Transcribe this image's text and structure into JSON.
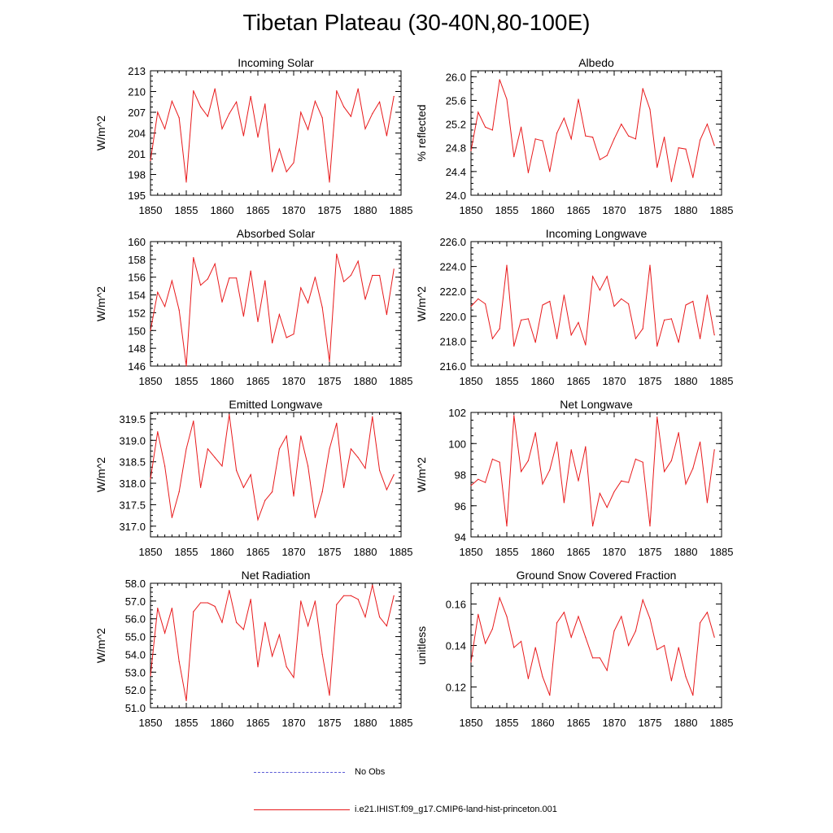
{
  "title": "Tibetan Plateau (30-40N,80-100E)",
  "legend": {
    "obs_label": "No Obs",
    "obs_color": "#5b5bd6",
    "model_label": "i.e21.IHIST.f09_g17.CMIP6-land-hist-princeton.001",
    "model_color": "#e8191b"
  },
  "chart_data": [
    {
      "type": "line",
      "title": "Incoming Solar",
      "ylabel": "W/m^2",
      "xlim": [
        1850,
        1885
      ],
      "ylim": [
        195,
        213
      ],
      "xticks": [
        1850,
        1855,
        1860,
        1865,
        1870,
        1875,
        1880,
        1885
      ],
      "yticks": [
        195,
        198,
        201,
        204,
        207,
        210,
        213
      ],
      "ytick_labels": [
        "195",
        "198",
        "201",
        "204",
        "207",
        "210",
        "213"
      ],
      "series": [
        {
          "x": [
            1850,
            1851,
            1852,
            1853,
            1854,
            1855,
            1856,
            1857,
            1858,
            1859,
            1860,
            1861,
            1862,
            1863,
            1864,
            1865,
            1866,
            1867,
            1868,
            1869,
            1870,
            1871,
            1872,
            1873,
            1874,
            1875,
            1876,
            1877,
            1878,
            1879,
            1880,
            1881,
            1882,
            1883,
            1884
          ],
          "values": [
            200.0,
            207.0,
            204.6,
            208.6,
            206.2,
            196.9,
            210.1,
            207.8,
            206.4,
            210.4,
            204.6,
            206.8,
            208.5,
            203.6,
            209.3,
            203.4,
            208.2,
            198.4,
            201.7,
            198.4,
            199.7,
            207.0,
            204.5,
            208.6,
            206.2,
            196.9,
            210.1,
            207.8,
            206.4,
            210.4,
            204.6,
            206.8,
            208.5,
            203.6,
            209.3
          ]
        }
      ]
    },
    {
      "type": "line",
      "title": "Albedo",
      "ylabel": "% reflected",
      "xlim": [
        1850,
        1885
      ],
      "ylim": [
        24.0,
        26.1
      ],
      "xticks": [
        1850,
        1855,
        1860,
        1865,
        1870,
        1875,
        1880,
        1885
      ],
      "yticks": [
        24.0,
        24.4,
        24.8,
        25.2,
        25.6,
        26.0
      ],
      "ytick_labels": [
        "24.0",
        "24.4",
        "24.8",
        "25.2",
        "25.6",
        "26.0"
      ],
      "series": [
        {
          "x": [
            1850,
            1851,
            1852,
            1853,
            1854,
            1855,
            1856,
            1857,
            1858,
            1859,
            1860,
            1861,
            1862,
            1863,
            1864,
            1865,
            1866,
            1867,
            1868,
            1869,
            1870,
            1871,
            1872,
            1873,
            1874,
            1875,
            1876,
            1877,
            1878,
            1879,
            1880,
            1881,
            1882,
            1883,
            1884
          ],
          "values": [
            24.75,
            25.4,
            25.15,
            25.1,
            25.95,
            25.62,
            24.65,
            25.15,
            24.38,
            24.95,
            24.92,
            24.4,
            25.05,
            25.3,
            24.95,
            25.62,
            25.0,
            24.98,
            24.6,
            24.67,
            24.95,
            25.2,
            25.0,
            24.95,
            25.8,
            25.45,
            24.47,
            24.98,
            24.23,
            24.8,
            24.78,
            24.3,
            24.93,
            25.2,
            24.84
          ]
        }
      ]
    },
    {
      "type": "line",
      "title": "Absorbed Solar",
      "ylabel": "W/m^2",
      "xlim": [
        1850,
        1885
      ],
      "ylim": [
        146,
        160
      ],
      "xticks": [
        1850,
        1855,
        1860,
        1865,
        1870,
        1875,
        1880,
        1885
      ],
      "yticks": [
        146,
        148,
        150,
        152,
        154,
        156,
        158,
        160
      ],
      "ytick_labels": [
        "146",
        "148",
        "150",
        "152",
        "154",
        "156",
        "158",
        "160"
      ],
      "series": [
        {
          "x": [
            1850,
            1851,
            1852,
            1853,
            1854,
            1855,
            1856,
            1857,
            1858,
            1859,
            1860,
            1861,
            1862,
            1863,
            1864,
            1865,
            1866,
            1867,
            1868,
            1869,
            1870,
            1871,
            1872,
            1873,
            1874,
            1875,
            1876,
            1877,
            1878,
            1879,
            1880,
            1881,
            1882,
            1883,
            1884
          ],
          "values": [
            150.0,
            154.3,
            152.7,
            155.6,
            152.3,
            146.0,
            158.2,
            155.1,
            155.8,
            157.5,
            153.2,
            155.9,
            155.9,
            151.6,
            156.7,
            151.0,
            155.6,
            148.6,
            151.8,
            149.2,
            149.6,
            154.8,
            153.1,
            156.0,
            152.6,
            146.5,
            158.6,
            155.5,
            156.2,
            157.8,
            153.5,
            156.2,
            156.2,
            151.8,
            156.9
          ]
        }
      ]
    },
    {
      "type": "line",
      "title": "Incoming Longwave",
      "ylabel": "W/m^2",
      "xlim": [
        1850,
        1885
      ],
      "ylim": [
        216,
        226
      ],
      "xticks": [
        1850,
        1855,
        1860,
        1865,
        1870,
        1875,
        1880,
        1885
      ],
      "yticks": [
        216,
        218,
        220,
        222,
        224,
        226
      ],
      "ytick_labels": [
        "216.0",
        "218.0",
        "220.0",
        "222.0",
        "224.0",
        "226.0"
      ],
      "series": [
        {
          "x": [
            1850,
            1851,
            1852,
            1853,
            1854,
            1855,
            1856,
            1857,
            1858,
            1859,
            1860,
            1861,
            1862,
            1863,
            1864,
            1865,
            1866,
            1867,
            1868,
            1869,
            1870,
            1871,
            1872,
            1873,
            1874,
            1875,
            1876,
            1877,
            1878,
            1879,
            1880,
            1881,
            1882,
            1883,
            1884
          ],
          "values": [
            220.8,
            221.4,
            221.0,
            218.2,
            219.0,
            224.1,
            217.6,
            219.7,
            219.8,
            217.9,
            220.9,
            221.2,
            218.2,
            221.7,
            218.5,
            219.5,
            217.7,
            223.2,
            222.1,
            223.2,
            220.8,
            221.4,
            221.0,
            218.2,
            219.0,
            224.1,
            217.6,
            219.7,
            219.8,
            217.9,
            220.9,
            221.2,
            218.2,
            221.7,
            218.5
          ]
        }
      ]
    },
    {
      "type": "line",
      "title": "Emitted Longwave",
      "ylabel": "W/m^2",
      "xlim": [
        1850,
        1885
      ],
      "ylim": [
        316.75,
        319.65
      ],
      "xticks": [
        1850,
        1855,
        1860,
        1865,
        1870,
        1875,
        1880,
        1885
      ],
      "yticks": [
        317.0,
        317.5,
        318.0,
        318.5,
        319.0,
        319.5
      ],
      "ytick_labels": [
        "317.0",
        "317.5",
        "318.0",
        "318.5",
        "319.0",
        "319.5"
      ],
      "series": [
        {
          "x": [
            1850,
            1851,
            1852,
            1853,
            1854,
            1855,
            1856,
            1857,
            1858,
            1859,
            1860,
            1861,
            1862,
            1863,
            1864,
            1865,
            1866,
            1867,
            1868,
            1869,
            1870,
            1871,
            1872,
            1873,
            1874,
            1875,
            1876,
            1877,
            1878,
            1879,
            1880,
            1881,
            1882,
            1883,
            1884
          ],
          "values": [
            318.1,
            319.2,
            318.4,
            317.2,
            317.8,
            318.8,
            319.45,
            317.9,
            318.8,
            318.6,
            318.4,
            319.6,
            318.3,
            317.9,
            318.2,
            317.15,
            317.6,
            317.8,
            318.8,
            319.1,
            317.7,
            319.1,
            318.4,
            317.2,
            317.8,
            318.8,
            319.4,
            317.9,
            318.8,
            318.6,
            318.35,
            319.55,
            318.3,
            317.85,
            318.2
          ]
        }
      ]
    },
    {
      "type": "line",
      "title": "Net Longwave",
      "ylabel": "W/m^2",
      "xlim": [
        1850,
        1885
      ],
      "ylim": [
        94,
        102
      ],
      "xticks": [
        1850,
        1855,
        1860,
        1865,
        1870,
        1875,
        1880,
        1885
      ],
      "yticks": [
        94,
        96,
        98,
        100,
        102
      ],
      "ytick_labels": [
        "94",
        "96",
        "98",
        "100",
        "102"
      ],
      "series": [
        {
          "x": [
            1850,
            1851,
            1852,
            1853,
            1854,
            1855,
            1856,
            1857,
            1858,
            1859,
            1860,
            1861,
            1862,
            1863,
            1864,
            1865,
            1866,
            1867,
            1868,
            1869,
            1870,
            1871,
            1872,
            1873,
            1874,
            1875,
            1876,
            1877,
            1878,
            1879,
            1880,
            1881,
            1882,
            1883,
            1884
          ],
          "values": [
            97.3,
            97.7,
            97.5,
            99.0,
            98.8,
            94.7,
            101.8,
            98.2,
            98.9,
            100.7,
            97.4,
            98.3,
            100.1,
            96.2,
            99.6,
            97.6,
            99.8,
            94.7,
            96.8,
            95.9,
            96.9,
            97.6,
            97.5,
            99.0,
            98.8,
            94.7,
            101.7,
            98.2,
            98.9,
            100.7,
            97.4,
            98.4,
            100.1,
            96.2,
            99.6
          ]
        }
      ]
    },
    {
      "type": "line",
      "title": "Net Radiation",
      "ylabel": "W/m^2",
      "xlim": [
        1850,
        1885
      ],
      "ylim": [
        51,
        58
      ],
      "xticks": [
        1850,
        1855,
        1860,
        1865,
        1870,
        1875,
        1880,
        1885
      ],
      "yticks": [
        51,
        52,
        53,
        54,
        55,
        56,
        57,
        58
      ],
      "ytick_labels": [
        "51.0",
        "52.0",
        "53.0",
        "54.0",
        "55.0",
        "56.0",
        "57.0",
        "58.0"
      ],
      "series": [
        {
          "x": [
            1850,
            1851,
            1852,
            1853,
            1854,
            1855,
            1856,
            1857,
            1858,
            1859,
            1860,
            1861,
            1862,
            1863,
            1864,
            1865,
            1866,
            1867,
            1868,
            1869,
            1870,
            1871,
            1872,
            1873,
            1874,
            1875,
            1876,
            1877,
            1878,
            1879,
            1880,
            1881,
            1882,
            1883,
            1884
          ],
          "values": [
            52.8,
            56.6,
            55.2,
            56.6,
            53.6,
            51.4,
            56.4,
            56.9,
            56.9,
            56.7,
            55.8,
            57.6,
            55.8,
            55.4,
            57.1,
            53.3,
            55.8,
            53.9,
            55.1,
            53.3,
            52.7,
            57.0,
            55.6,
            57.0,
            54.0,
            51.7,
            56.8,
            57.3,
            57.3,
            57.1,
            56.1,
            57.9,
            56.1,
            55.6,
            57.3
          ]
        }
      ]
    },
    {
      "type": "line",
      "title": "Ground Snow Covered Fraction",
      "ylabel": "unitless",
      "xlim": [
        1850,
        1885
      ],
      "ylim": [
        0.11,
        0.17
      ],
      "xticks": [
        1850,
        1855,
        1860,
        1865,
        1870,
        1875,
        1880,
        1885
      ],
      "yticks": [
        0.12,
        0.14,
        0.16
      ],
      "ytick_labels": [
        "0.12",
        "0.14",
        "0.16"
      ],
      "series": [
        {
          "x": [
            1850,
            1851,
            1852,
            1853,
            1854,
            1855,
            1856,
            1857,
            1858,
            1859,
            1860,
            1861,
            1862,
            1863,
            1864,
            1865,
            1866,
            1867,
            1868,
            1869,
            1870,
            1871,
            1872,
            1873,
            1874,
            1875,
            1876,
            1877,
            1878,
            1879,
            1880,
            1881,
            1882,
            1883,
            1884
          ],
          "values": [
            0.132,
            0.155,
            0.141,
            0.148,
            0.163,
            0.154,
            0.139,
            0.142,
            0.124,
            0.139,
            0.125,
            0.116,
            0.151,
            0.156,
            0.144,
            0.154,
            0.144,
            0.134,
            0.134,
            0.128,
            0.147,
            0.154,
            0.14,
            0.147,
            0.162,
            0.153,
            0.138,
            0.14,
            0.123,
            0.139,
            0.125,
            0.116,
            0.151,
            0.156,
            0.144
          ]
        }
      ]
    }
  ]
}
